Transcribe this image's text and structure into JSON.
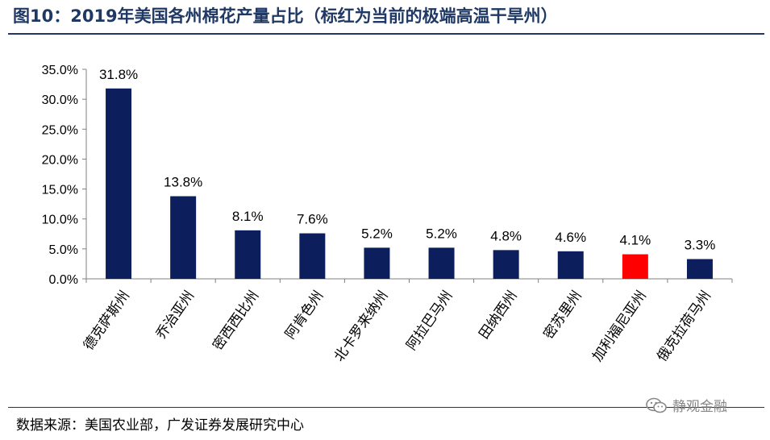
{
  "header": {
    "title": "图10：2019年美国各州棉花产量占比（标红为当前的极端高温干旱州）"
  },
  "footer": {
    "source": "数据来源：美国农业部，广发证券发展研究中心",
    "watermark": "静观金融",
    "watermark_icon": "wechat-icon"
  },
  "chart_data": {
    "type": "bar",
    "title": "",
    "xlabel": "",
    "ylabel": "",
    "ylim": [
      0,
      35
    ],
    "yticks": [
      "0.0%",
      "5.0%",
      "10.0%",
      "15.0%",
      "20.0%",
      "25.0%",
      "30.0%",
      "35.0%"
    ],
    "ytick_values": [
      0,
      5,
      10,
      15,
      20,
      25,
      30,
      35
    ],
    "categories": [
      "德克萨斯州",
      "乔治亚州",
      "密西西比州",
      "阿肯色州",
      "北卡罗来纳州",
      "阿拉巴马州",
      "田纳西州",
      "密苏里州",
      "加利福尼亚州",
      "俄克拉荷马州"
    ],
    "values": [
      31.8,
      13.8,
      8.1,
      7.6,
      5.2,
      5.2,
      4.8,
      4.6,
      4.1,
      3.3
    ],
    "data_labels": [
      "31.8%",
      "13.8%",
      "8.1%",
      "7.6%",
      "5.2%",
      "5.2%",
      "4.8%",
      "4.6%",
      "4.1%",
      "3.3%"
    ],
    "grid": false,
    "colors": {
      "default": "#0c1f5c",
      "highlight": "#ff0000"
    },
    "highlight_index": 8
  }
}
